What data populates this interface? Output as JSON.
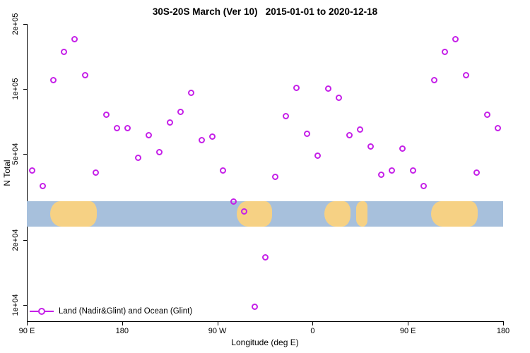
{
  "colors": {
    "point": "#c520e8",
    "ocean": "#a7c0dc",
    "land": "#f6d184",
    "axis": "#000000"
  },
  "chart_data": {
    "type": "scatter",
    "title": "30S-20S March (Ver 10)   2015-01-01 to 2020-12-18",
    "xlabel": "Longitude (deg E)",
    "ylabel": "N Total",
    "legend_label": "Land (Nadir&Glint) and Ocean (Glint)",
    "y_scale": "log",
    "xlim": [
      90,
      540
    ],
    "ylim": [
      8400,
      198000
    ],
    "x_ticks": [
      {
        "lon": 90,
        "label": "90 E"
      },
      {
        "lon": 180,
        "label": "180"
      },
      {
        "lon": 270,
        "label": "90 W"
      },
      {
        "lon": 360,
        "label": "0"
      },
      {
        "lon": 450,
        "label": "90 E"
      },
      {
        "lon": 540,
        "label": "180"
      }
    ],
    "y_ticks": [
      {
        "value": 10000,
        "label": "1e+04"
      },
      {
        "value": 20000,
        "label": "2e+04"
      },
      {
        "value": 50000,
        "label": "5e+04"
      },
      {
        "value": 100000,
        "label": "1e+05"
      },
      {
        "value": 200000,
        "label": "2e+05"
      }
    ],
    "points": [
      {
        "lon": 95,
        "n": 42000
      },
      {
        "lon": 105,
        "n": 35500
      },
      {
        "lon": 115,
        "n": 110000
      },
      {
        "lon": 125,
        "n": 148000
      },
      {
        "lon": 135,
        "n": 170000
      },
      {
        "lon": 145,
        "n": 116000
      },
      {
        "lon": 155,
        "n": 41000
      },
      {
        "lon": 165,
        "n": 76000
      },
      {
        "lon": 175,
        "n": 66000
      },
      {
        "lon": 185,
        "n": 66000
      },
      {
        "lon": 195,
        "n": 48000
      },
      {
        "lon": 205,
        "n": 61000
      },
      {
        "lon": 215,
        "n": 51000
      },
      {
        "lon": 225,
        "n": 70000
      },
      {
        "lon": 235,
        "n": 78000
      },
      {
        "lon": 245,
        "n": 96000
      },
      {
        "lon": 255,
        "n": 58000
      },
      {
        "lon": 265,
        "n": 60000
      },
      {
        "lon": 275,
        "n": 42000
      },
      {
        "lon": 285,
        "n": 30000
      },
      {
        "lon": 295,
        "n": 27000
      },
      {
        "lon": 305,
        "n": 9800
      },
      {
        "lon": 315,
        "n": 16600
      },
      {
        "lon": 325,
        "n": 39000
      },
      {
        "lon": 335,
        "n": 75000
      },
      {
        "lon": 345,
        "n": 101000
      },
      {
        "lon": 355,
        "n": 62000
      },
      {
        "lon": 365,
        "n": 49000
      },
      {
        "lon": 375,
        "n": 100000
      },
      {
        "lon": 385,
        "n": 91000
      },
      {
        "lon": 395,
        "n": 61000
      },
      {
        "lon": 405,
        "n": 65000
      },
      {
        "lon": 415,
        "n": 54000
      },
      {
        "lon": 425,
        "n": 40000
      },
      {
        "lon": 435,
        "n": 42000
      },
      {
        "lon": 445,
        "n": 53000
      },
      {
        "lon": 455,
        "n": 42000
      },
      {
        "lon": 465,
        "n": 35500
      },
      {
        "lon": 475,
        "n": 110000
      },
      {
        "lon": 485,
        "n": 148000
      },
      {
        "lon": 495,
        "n": 170000
      },
      {
        "lon": 505,
        "n": 116000
      },
      {
        "lon": 515,
        "n": 41000
      },
      {
        "lon": 525,
        "n": 76000
      },
      {
        "lon": 535,
        "n": 66000
      }
    ],
    "map_band": {
      "n_range": [
        23100,
        30100
      ],
      "land_segments_lon": [
        [
          112,
          156
        ],
        [
          288,
          322
        ],
        [
          371,
          396
        ],
        [
          401,
          412
        ],
        [
          472,
          516
        ]
      ]
    }
  }
}
